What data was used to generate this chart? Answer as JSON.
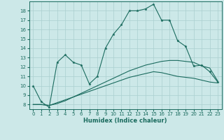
{
  "xlabel": "Humidex (Indice chaleur)",
  "bg_color": "#cce8e8",
  "grid_color": "#aacfcf",
  "line_color": "#1a6b5e",
  "xlim": [
    -0.5,
    23.5
  ],
  "ylim": [
    7.5,
    19.0
  ],
  "yticks": [
    8,
    9,
    10,
    11,
    12,
    13,
    14,
    15,
    16,
    17,
    18
  ],
  "xticks": [
    0,
    1,
    2,
    3,
    4,
    5,
    6,
    7,
    8,
    9,
    10,
    11,
    12,
    13,
    14,
    15,
    16,
    17,
    18,
    19,
    20,
    21,
    22,
    23
  ],
  "line1_x": [
    0,
    1,
    2,
    3,
    4,
    5,
    6,
    7,
    8,
    9,
    10,
    11,
    12,
    13,
    14,
    15,
    16,
    17,
    18,
    19,
    20,
    21,
    22,
    23
  ],
  "line1_y": [
    10.0,
    8.3,
    7.7,
    12.5,
    13.3,
    12.5,
    12.2,
    10.2,
    11.0,
    14.0,
    15.5,
    16.5,
    18.0,
    18.0,
    18.2,
    18.7,
    17.0,
    17.0,
    14.8,
    14.2,
    12.1,
    12.2,
    11.5,
    10.4
  ],
  "line2_x": [
    0,
    1,
    2,
    3,
    4,
    5,
    6,
    7,
    8,
    9,
    10,
    11,
    12,
    13,
    14,
    15,
    16,
    17,
    18,
    19,
    20,
    21,
    22,
    23
  ],
  "line2_y": [
    8.0,
    8.0,
    7.9,
    8.2,
    8.5,
    8.8,
    9.1,
    9.4,
    9.7,
    10.0,
    10.3,
    10.6,
    10.9,
    11.1,
    11.3,
    11.5,
    11.4,
    11.2,
    11.0,
    10.9,
    10.8,
    10.6,
    10.4,
    10.3
  ],
  "line3_x": [
    0,
    1,
    2,
    3,
    4,
    5,
    6,
    7,
    8,
    9,
    10,
    11,
    12,
    13,
    14,
    15,
    16,
    17,
    18,
    19,
    20,
    21,
    22,
    23
  ],
  "line3_y": [
    8.0,
    8.0,
    7.9,
    8.1,
    8.4,
    8.8,
    9.2,
    9.6,
    10.0,
    10.4,
    10.8,
    11.2,
    11.6,
    11.9,
    12.2,
    12.4,
    12.6,
    12.7,
    12.7,
    12.6,
    12.5,
    12.1,
    11.9,
    10.5
  ],
  "tick_fontsize": 5.0,
  "xlabel_fontsize": 6.0,
  "linewidth": 0.8,
  "marker_size": 2.5
}
